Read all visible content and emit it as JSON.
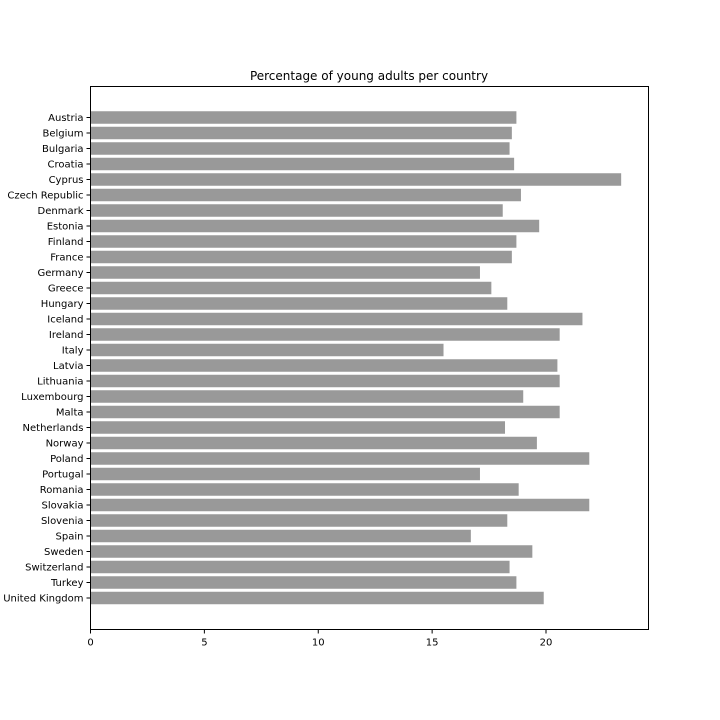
{
  "chart_data": {
    "type": "bar",
    "orientation": "horizontal",
    "title": "Percentage of young adults per country",
    "xlabel": "",
    "ylabel": "",
    "xlim": [
      0,
      24.5
    ],
    "xticks": [
      0,
      5,
      10,
      15,
      20
    ],
    "grid": false,
    "bar_color": "#999999",
    "categories": [
      "Austria",
      "Belgium",
      "Bulgaria",
      "Croatia",
      "Cyprus",
      "Czech Republic",
      "Denmark",
      "Estonia",
      "Finland",
      "France",
      "Germany",
      "Greece",
      "Hungary",
      "Iceland",
      "Ireland",
      "Italy",
      "Latvia",
      "Lithuania",
      "Luxembourg",
      "Malta",
      "Netherlands",
      "Norway",
      "Poland",
      "Portugal",
      "Romania",
      "Slovakia",
      "Slovenia",
      "Spain",
      "Sweden",
      "Switzerland",
      "Turkey",
      "United Kingdom"
    ],
    "values": [
      18.7,
      18.5,
      18.4,
      18.6,
      23.3,
      18.9,
      18.1,
      19.7,
      18.7,
      18.5,
      17.1,
      17.6,
      18.3,
      21.6,
      20.6,
      15.5,
      20.5,
      20.6,
      19.0,
      20.6,
      18.2,
      19.6,
      21.9,
      17.1,
      18.8,
      21.9,
      18.3,
      16.7,
      19.4,
      18.4,
      18.7,
      19.9
    ]
  }
}
